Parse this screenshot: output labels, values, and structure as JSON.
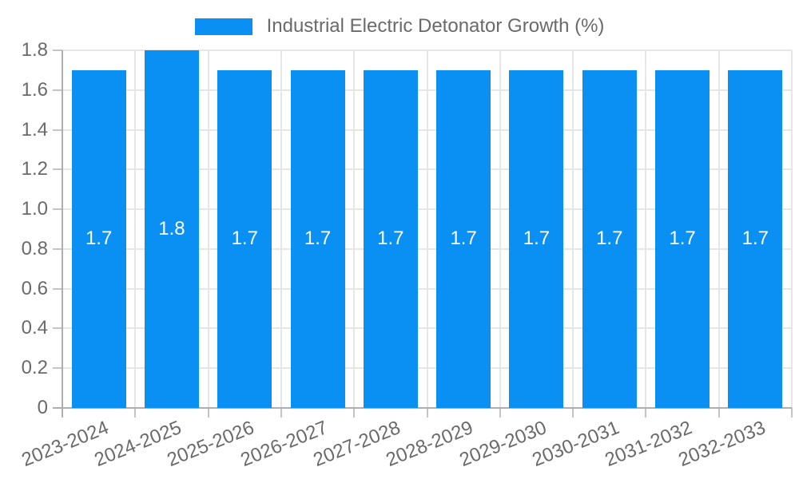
{
  "legend": {
    "label": "Industrial Electric Detonator Growth (%)"
  },
  "chart_data": {
    "type": "bar",
    "title": "Industrial Electric Detonator Growth (%)",
    "xlabel": "",
    "ylabel": "",
    "categories": [
      "2023-2024",
      "2024-2025",
      "2025-2026",
      "2026-2027",
      "2027-2028",
      "2028-2029",
      "2029-2030",
      "2030-2031",
      "2031-2032",
      "2032-2033"
    ],
    "values": [
      1.7,
      1.8,
      1.7,
      1.7,
      1.7,
      1.7,
      1.7,
      1.7,
      1.7,
      1.7
    ],
    "data_labels": [
      "1.7",
      "1.8",
      "1.7",
      "1.7",
      "1.7",
      "1.7",
      "1.7",
      "1.7",
      "1.7",
      "1.7"
    ],
    "ylim": [
      0,
      1.8
    ],
    "yticks": [
      0,
      0.2,
      0.4,
      0.6,
      0.8,
      1.0,
      1.2,
      1.4,
      1.6,
      1.8
    ],
    "ytick_labels": [
      "0",
      "0.2",
      "0.4",
      "0.6",
      "0.8",
      "1.0",
      "1.2",
      "1.4",
      "1.6",
      "1.8"
    ],
    "grid": true,
    "legend_position": "top-center",
    "colors": {
      "bar": "#0a8ff2",
      "grid": "#e6e6e6",
      "axis": "#aeaeae",
      "tick": "#c4c4c4",
      "text": "#6a6a6a",
      "value_label": "#ffffff",
      "background": "#ffffff"
    }
  }
}
